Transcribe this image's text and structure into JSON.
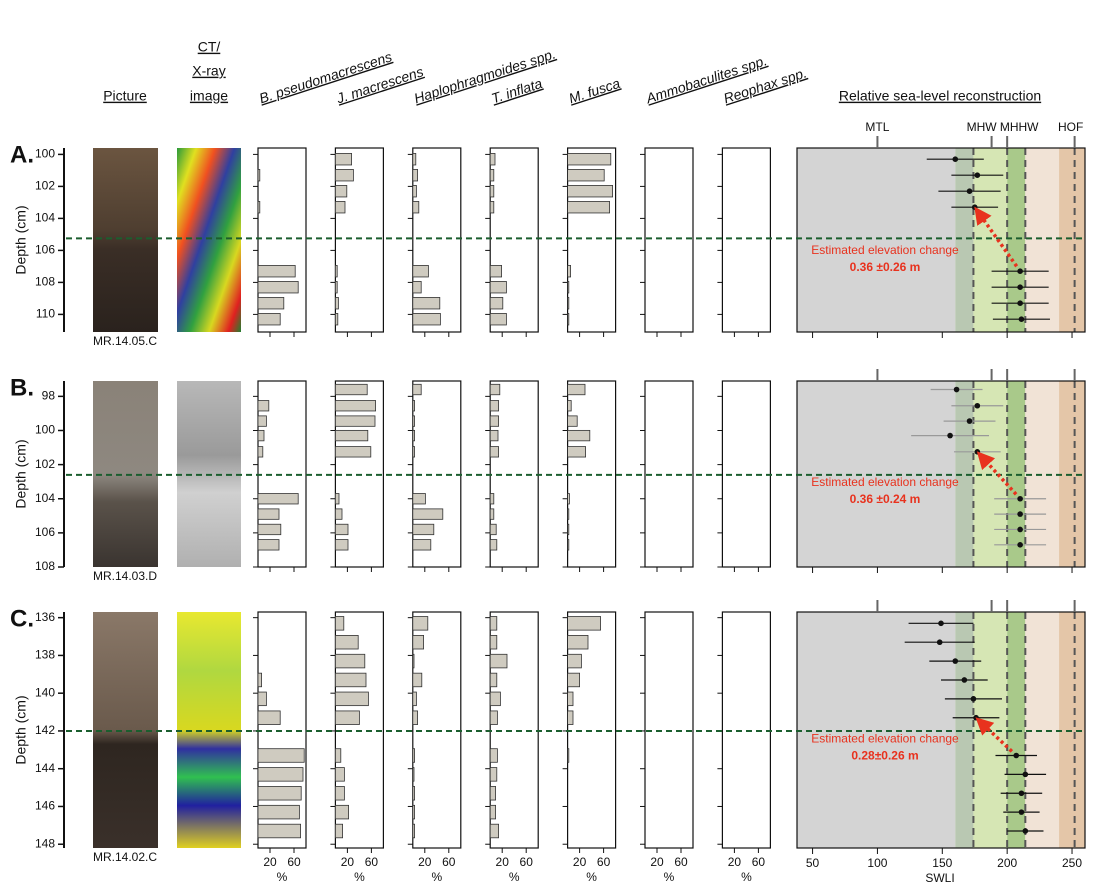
{
  "headers": {
    "picture": "Picture",
    "ct": [
      "CT/",
      "X-ray",
      "image"
    ],
    "reconstruction": "Relative sea-level reconstruction"
  },
  "shared": {
    "taxa": [
      "B. pseudomacrescens",
      "J. macrescens",
      "Haplophragmoides spp.",
      "T. inflata",
      "M. fusca",
      "Ammobaculites spp.",
      "Reophax spp."
    ],
    "taxa_xlim": [
      0,
      80
    ],
    "taxa_xticks": [
      20,
      60
    ],
    "taxa_x_label": "%",
    "bar_color": "#cfcbc0",
    "swli_xlim": [
      38,
      260
    ],
    "swli_xticks": [
      50,
      100,
      150,
      200,
      250
    ],
    "swli_x_label": "SWLI",
    "datums": [
      {
        "name": "MTL",
        "value": 100
      },
      {
        "name": "MHW",
        "value": 188
      },
      {
        "name": "MHHW",
        "value": 200
      },
      {
        "name": "HOF",
        "value": 252
      }
    ],
    "reference_lines": [
      174,
      200,
      214,
      252
    ],
    "zones": [
      {
        "from": 38,
        "to": 160,
        "color": "#d4d4d4"
      },
      {
        "from": 160,
        "to": 174,
        "color": "#b9c8b2"
      },
      {
        "from": 174,
        "to": 200,
        "color": "#d6e6b4"
      },
      {
        "from": 200,
        "to": 214,
        "color": "#a9c98a"
      },
      {
        "from": 214,
        "to": 240,
        "color": "#f1e3d6"
      },
      {
        "from": 240,
        "to": 260,
        "color": "#e4c6a8"
      }
    ]
  },
  "chart_data": [
    {
      "type": "core",
      "label": "A.",
      "sample": "MR.14.05.C",
      "y_label": "Depth (cm)",
      "ylim": [
        99.6,
        111.1
      ],
      "yticks": [
        100,
        102,
        104,
        106,
        108,
        110
      ],
      "boundary": 105.25,
      "depths": [
        100.3,
        101.3,
        102.3,
        103.3,
        107.3,
        108.3,
        109.3,
        110.3
      ],
      "taxa_values": [
        [
          0,
          3,
          0,
          3,
          62,
          67,
          43,
          37
        ],
        [
          27,
          30,
          19,
          16,
          3,
          3,
          5,
          4
        ],
        [
          5,
          8,
          6,
          10,
          26,
          14,
          45,
          46
        ],
        [
          8,
          6,
          6,
          6,
          19,
          27,
          21,
          27
        ],
        [
          72,
          61,
          75,
          70,
          5,
          2,
          2,
          2
        ],
        [
          0,
          0,
          0,
          0,
          0,
          0,
          0,
          0
        ],
        [
          0,
          0,
          0,
          0,
          0,
          0,
          0,
          0
        ]
      ],
      "swli": {
        "values": [
          160,
          177,
          171,
          175,
          210,
          210,
          210,
          211
        ],
        "errors": [
          22,
          20,
          24,
          18,
          22,
          22,
          22,
          22
        ]
      },
      "error_color": "#111",
      "annotation": {
        "title": "Estimated elevation change",
        "value": "0.36 ±0.26 m"
      }
    },
    {
      "type": "core",
      "label": "B.",
      "sample": "MR.14.03.D",
      "y_label": "Depth (cm)",
      "ylim": [
        97.1,
        108
      ],
      "yticks": [
        98,
        100,
        102,
        104,
        106,
        108
      ],
      "boundary": 102.6,
      "depths": [
        97.6,
        98.55,
        99.45,
        100.3,
        101.25,
        104.0,
        104.9,
        105.8,
        106.7
      ],
      "taxa_values": [
        [
          0,
          18,
          14,
          10,
          8,
          67,
          35,
          38,
          35
        ],
        [
          53,
          67,
          66,
          54,
          59,
          6,
          11,
          21,
          21
        ],
        [
          14,
          3,
          3,
          3,
          3,
          21,
          50,
          35,
          30
        ],
        [
          16,
          14,
          14,
          13,
          14,
          6,
          6,
          10,
          11
        ],
        [
          29,
          6,
          16,
          37,
          30,
          3,
          2,
          2,
          2
        ],
        [
          0,
          0,
          0,
          0,
          0,
          0,
          0,
          0,
          0
        ],
        [
          0,
          0,
          0,
          0,
          0,
          0,
          0,
          0,
          0
        ]
      ],
      "swli": {
        "values": [
          161,
          177,
          171,
          156,
          177,
          210,
          210,
          210,
          210
        ],
        "errors": [
          20,
          20,
          20,
          30,
          18,
          20,
          20,
          20,
          20
        ]
      },
      "error_color": "#999",
      "annotation": {
        "title": "Estimated elevation change",
        "value": "0.36 ±0.24 m"
      }
    },
    {
      "type": "core",
      "label": "C.",
      "sample": "MR.14.02.C",
      "y_label": "Depth (cm)",
      "ylim": [
        135.7,
        148.2
      ],
      "yticks": [
        136,
        138,
        140,
        142,
        144,
        146,
        148
      ],
      "boundary": 142,
      "depths": [
        136.3,
        137.3,
        138.3,
        139.3,
        140.3,
        141.3,
        143.3,
        144.3,
        145.3,
        146.3,
        147.3
      ],
      "taxa_values": [
        [
          0,
          0,
          0,
          6,
          14,
          37,
          77,
          75,
          72,
          69,
          71
        ],
        [
          14,
          38,
          49,
          51,
          55,
          40,
          9,
          15,
          15,
          22,
          12
        ],
        [
          25,
          18,
          2,
          15,
          6,
          8,
          3,
          2,
          3,
          3,
          3
        ],
        [
          11,
          11,
          28,
          11,
          17,
          12,
          12,
          11,
          9,
          9,
          14
        ],
        [
          55,
          34,
          23,
          20,
          9,
          9,
          2,
          0,
          0,
          0,
          0
        ],
        [
          0,
          0,
          0,
          0,
          0,
          0,
          0,
          0,
          0,
          0,
          0
        ],
        [
          0,
          0,
          0,
          0,
          0,
          0,
          0,
          0,
          0,
          0,
          0
        ]
      ],
      "swli": {
        "values": [
          149,
          148,
          160,
          167,
          174,
          176,
          207,
          214,
          211,
          211,
          214
        ],
        "errors": [
          25,
          27,
          20,
          18,
          22,
          18,
          16,
          16,
          16,
          14,
          14
        ]
      },
      "error_color": "#111",
      "annotation": {
        "title": "Estimated elevation change",
        "value": "0.28±0.26 m"
      }
    }
  ]
}
